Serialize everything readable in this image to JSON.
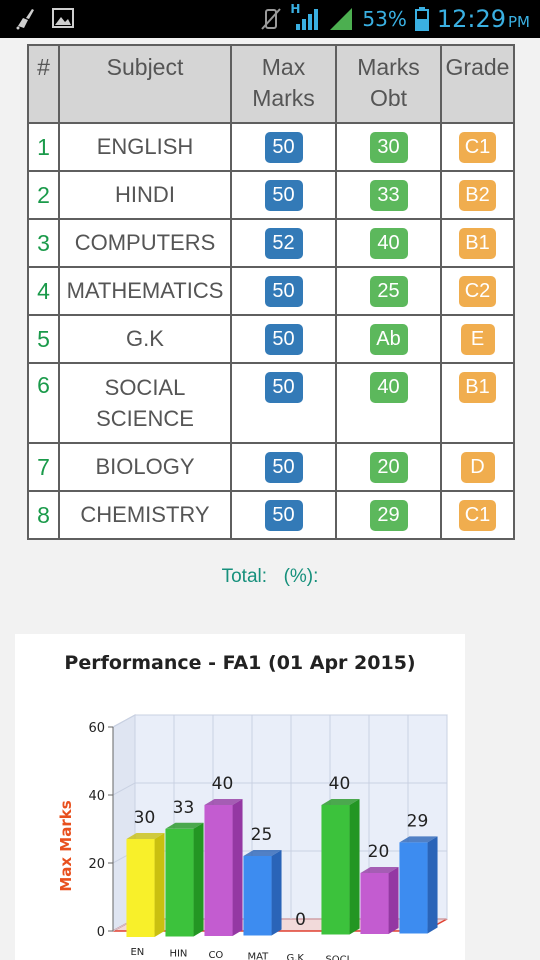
{
  "status_bar": {
    "network_type": "H",
    "battery_percent": "53%",
    "time": "12:29",
    "ampm": "PM"
  },
  "table": {
    "headers": {
      "num": "#",
      "subject": "Subject",
      "max_marks_line1": "Max",
      "max_marks_line2": "Marks",
      "marks_obt_line1": "Marks",
      "marks_obt_line2": "Obt",
      "grade": "Grade"
    },
    "rows": [
      {
        "num": "1",
        "subject_line1": "ENGLISH",
        "subject_line2": "",
        "max": "50",
        "obt": "30",
        "grade": "C1"
      },
      {
        "num": "2",
        "subject_line1": "HINDI",
        "subject_line2": "",
        "max": "50",
        "obt": "33",
        "grade": "B2"
      },
      {
        "num": "3",
        "subject_line1": "COMPUTERS",
        "subject_line2": "",
        "max": "52",
        "obt": "40",
        "grade": "B1"
      },
      {
        "num": "4",
        "subject_line1": "MATHEMATICS",
        "subject_line2": "",
        "max": "50",
        "obt": "25",
        "grade": "C2"
      },
      {
        "num": "5",
        "subject_line1": "G.K",
        "subject_line2": "",
        "max": "50",
        "obt": "Ab",
        "grade": "E"
      },
      {
        "num": "6",
        "subject_line1": "SOCIAL",
        "subject_line2": "SCIENCE",
        "max": "50",
        "obt": "40",
        "grade": "B1"
      },
      {
        "num": "7",
        "subject_line1": "BIOLOGY",
        "subject_line2": "",
        "max": "50",
        "obt": "20",
        "grade": "D"
      },
      {
        "num": "8",
        "subject_line1": "CHEMISTRY",
        "subject_line2": "",
        "max": "50",
        "obt": "29",
        "grade": "C1"
      }
    ]
  },
  "total": {
    "label": "Total:",
    "percent_label": "(%):"
  },
  "chart_data": {
    "type": "bar",
    "title": "Performance - FA1 (01 Apr 2015)",
    "ylabel": "Max Marks",
    "xlabel": "",
    "ylim": [
      0,
      60
    ],
    "yticks": [
      "0",
      "20",
      "40",
      "60"
    ],
    "categories": [
      "EN",
      "HIN",
      "CO",
      "MAT",
      "G.K",
      "SOCI",
      "",
      ""
    ],
    "values": [
      30,
      33,
      40,
      25,
      0,
      40,
      20,
      29
    ],
    "data_labels": [
      "30",
      "33",
      "40",
      "25",
      "0",
      "40",
      "20",
      "29"
    ],
    "colors": [
      "#f8f02a",
      "#3cc23c",
      "#c35cd0",
      "#3d8cf0",
      "#3d8cf0",
      "#3cc23c",
      "#c35cd0",
      "#3d8cf0"
    ],
    "side_colors": [
      "#c9c010",
      "#239623",
      "#9438a3",
      "#2a64b8",
      "#2a64b8",
      "#239623",
      "#9438a3",
      "#2a64b8"
    ],
    "grid": true,
    "ylabel_color": "#e8501e"
  }
}
